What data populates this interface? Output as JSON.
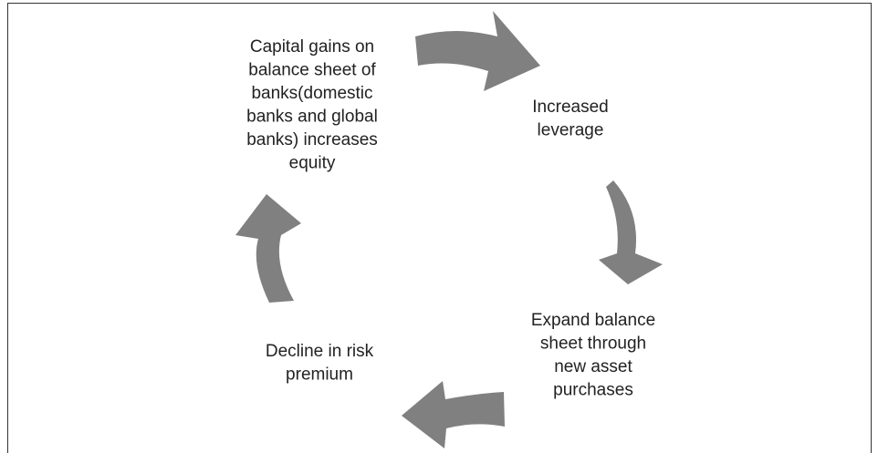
{
  "nodes": [
    {
      "lines": [
        "Capital gains on",
        "balance sheet of",
        "banks(domestic",
        "banks and global",
        "banks) increases",
        "equity"
      ]
    },
    {
      "lines": [
        "Increased",
        "leverage"
      ]
    },
    {
      "lines": [
        "Expand balance",
        "sheet through",
        "new asset",
        "purchases"
      ]
    },
    {
      "lines": [
        "Decline in risk",
        "premium"
      ]
    }
  ]
}
